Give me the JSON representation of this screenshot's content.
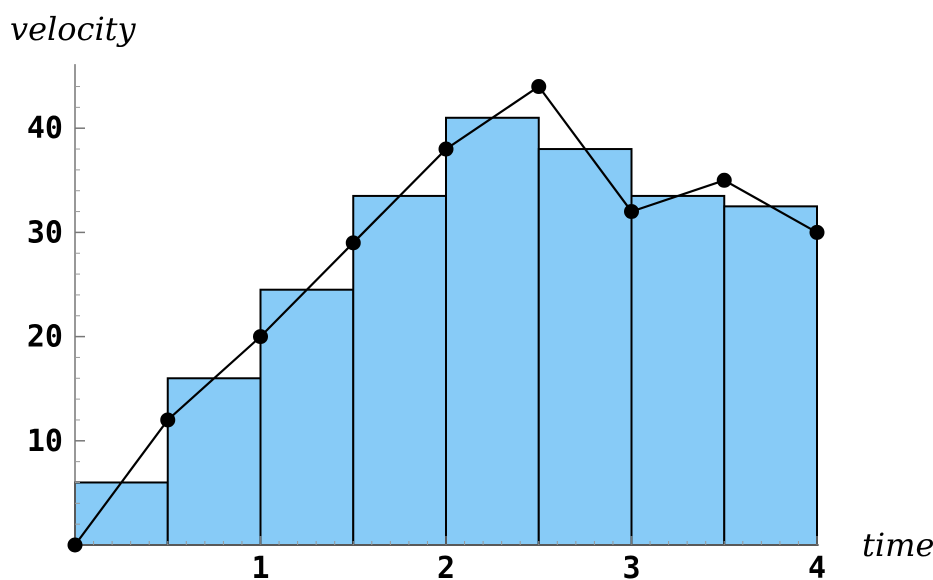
{
  "chart_data": {
    "type": "bar",
    "xlabel": "time",
    "ylabel": "velocity",
    "xlim": [
      0,
      4
    ],
    "ylim": [
      0,
      45
    ],
    "x_ticks": [
      1,
      2,
      3,
      4
    ],
    "y_ticks": [
      10,
      20,
      30,
      40
    ],
    "grid": false,
    "bars": {
      "edges": [
        0,
        0.5,
        1,
        1.5,
        2,
        2.5,
        3,
        3.5,
        4
      ],
      "values": [
        6,
        16,
        24.5,
        33.5,
        41,
        38,
        33.5,
        32.5
      ],
      "color": "#87CBF7"
    },
    "line_series": {
      "x": [
        0,
        0.5,
        1,
        1.5,
        2,
        2.5,
        3,
        3.5,
        4
      ],
      "y": [
        0,
        12,
        20,
        29,
        38,
        44,
        32,
        35,
        30
      ],
      "color": "#000000"
    }
  }
}
